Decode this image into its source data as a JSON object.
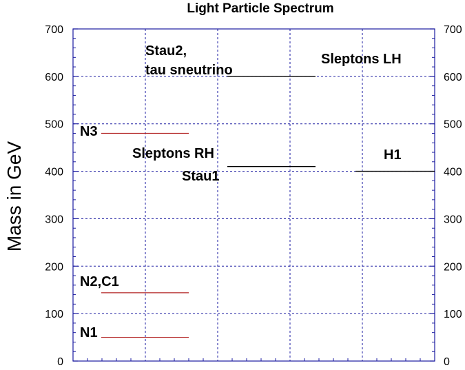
{
  "chart_data": {
    "type": "line",
    "title": "Light Particle Spectrum",
    "xlabel": "",
    "ylabel": "Mass in GeV",
    "ylim": [
      0,
      700
    ],
    "yticks": [
      0,
      100,
      200,
      300,
      400,
      500,
      600,
      700
    ],
    "grid": true,
    "colors": {
      "neutralino": "#b22222",
      "other": "#000000",
      "grid": "#1a1aa0"
    },
    "series": [
      {
        "label_lines": [
          "N1"
        ],
        "mass": 50,
        "column": 1,
        "color": "#b22222"
      },
      {
        "label_lines": [
          "N2,C1"
        ],
        "mass": 144,
        "column": 1,
        "color": "#b22222"
      },
      {
        "label_lines": [
          "N3"
        ],
        "mass": 480,
        "column": 1,
        "color": "#b22222"
      },
      {
        "label_lines": [
          "Sleptons RH",
          "Stau1"
        ],
        "mass": 410,
        "column": 3,
        "color": "#000000"
      },
      {
        "label_lines": [
          "Stau2,",
          "tau sneutrino"
        ],
        "mass": 600,
        "column": 3,
        "color": "#000000"
      },
      {
        "label_lines": [
          "Sleptons LH"
        ],
        "mass": 600,
        "column": 3,
        "color": "#000000"
      },
      {
        "label_lines": [
          "H1"
        ],
        "mass": 400,
        "column": 5,
        "color": "#000000"
      }
    ]
  }
}
